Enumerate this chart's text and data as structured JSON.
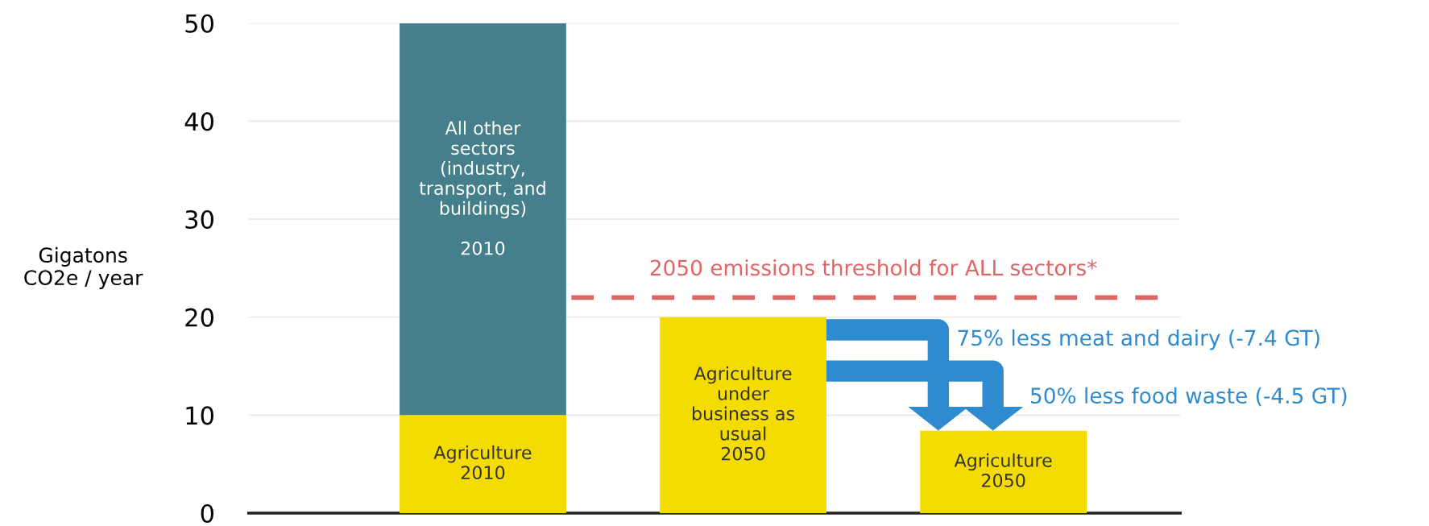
{
  "chart_data": {
    "type": "bar",
    "stacked": true,
    "categories": [
      null,
      null,
      null
    ],
    "series": [
      {
        "color": "#f5dc00",
        "values": [
          10,
          20,
          8.4
        ]
      },
      {
        "color": "#467f8c",
        "values": [
          40,
          null,
          null
        ]
      }
    ],
    "ylabel": "Gigatons\nCO2e / year",
    "ylim": [
      0,
      50
    ],
    "yticks": [
      0,
      10,
      20,
      30,
      40,
      50
    ],
    "grid": "y",
    "ref_lines": [
      {
        "axis": "y",
        "value": 22,
        "label": "2050 emissions threshold for ALL sectors*",
        "color": "#e06666",
        "line_style": "dashed"
      }
    ],
    "annotations": [
      "75% less meat and dairy (-7.4 GT)",
      "50% less food waste (-4.5 GT)",
      "Agriculture\n2010",
      "Agriculture\nunder\nbusiness as\nusual\n2050",
      "Agriculture\n2050",
      "All other\nsectors\n(industry,\ntransport, and\nbuildings)\n\n2010"
    ]
  }
}
